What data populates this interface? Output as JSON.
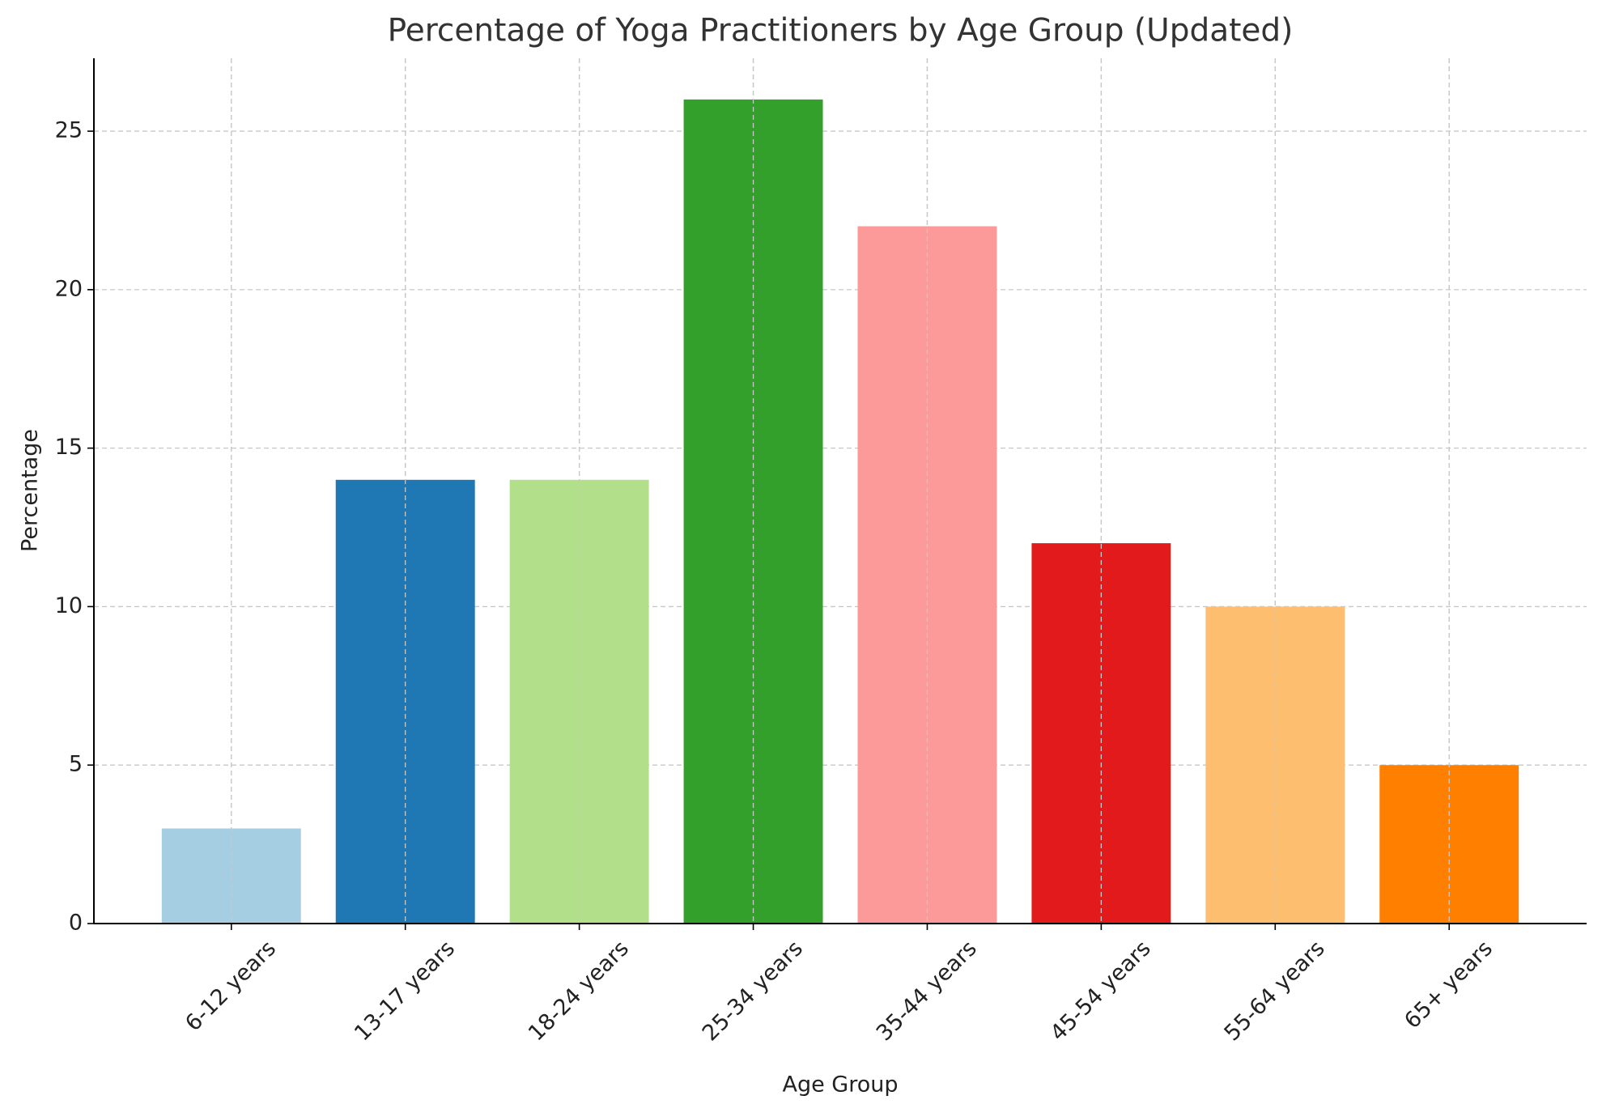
{
  "chart_data": {
    "type": "bar",
    "title": "Percentage of Yoga Practitioners by Age Group (Updated)",
    "x_label": "Age Group",
    "y_label": "Percentage",
    "categories": [
      "6-12 years",
      "13-17 years",
      "18-24 years",
      "25-34 years",
      "35-44 years",
      "45-54 years",
      "55-64 years",
      "65+ years"
    ],
    "values": [
      3,
      14,
      14,
      26,
      22,
      12,
      10,
      5
    ],
    "colors": [
      "#a6cee3",
      "#1f78b4",
      "#b2df8a",
      "#33a02c",
      "#fb9a99",
      "#e31a1c",
      "#fdbf6f",
      "#ff7f00"
    ],
    "ylim": [
      0,
      27.3
    ],
    "yticks": [
      0,
      5,
      10,
      15,
      20,
      25
    ],
    "grid": true
  }
}
